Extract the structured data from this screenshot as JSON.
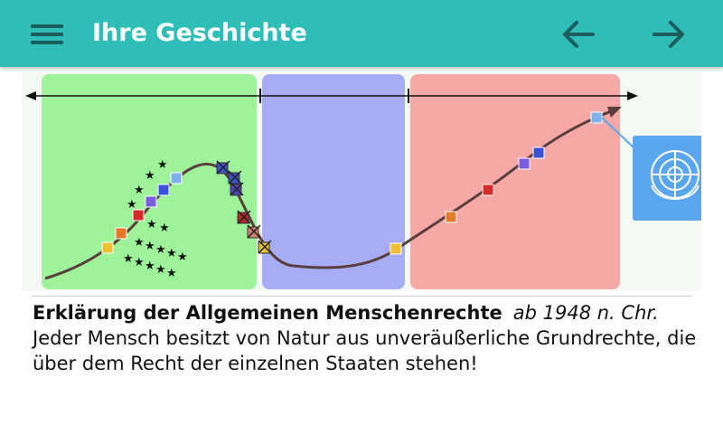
{
  "appbar": {
    "title": "Ihre Geschichte",
    "menu_icon": "hamburger-menu-icon",
    "back_icon": "arrow-left-icon",
    "forward_icon": "arrow-right-icon",
    "background_color": "#2fbdb8",
    "icon_color": "#1b5d5d"
  },
  "timeline": {
    "era_colors": [
      "#9ef39a",
      "#a7adf5",
      "#f5a8a5"
    ],
    "curve_color": "#5a3e3e",
    "emblem": "un-emblem",
    "emblem_background": "#5aa6ee"
  },
  "entry": {
    "title": "Erklärung der Allgemeinen Menschenrechte",
    "date": "ab 1948 n. Chr.",
    "description": "Jeder Mensch besitzt von Natur aus unveräußerliche Grundrechte, die über dem Recht der einzelnen Staaten stehen!"
  }
}
